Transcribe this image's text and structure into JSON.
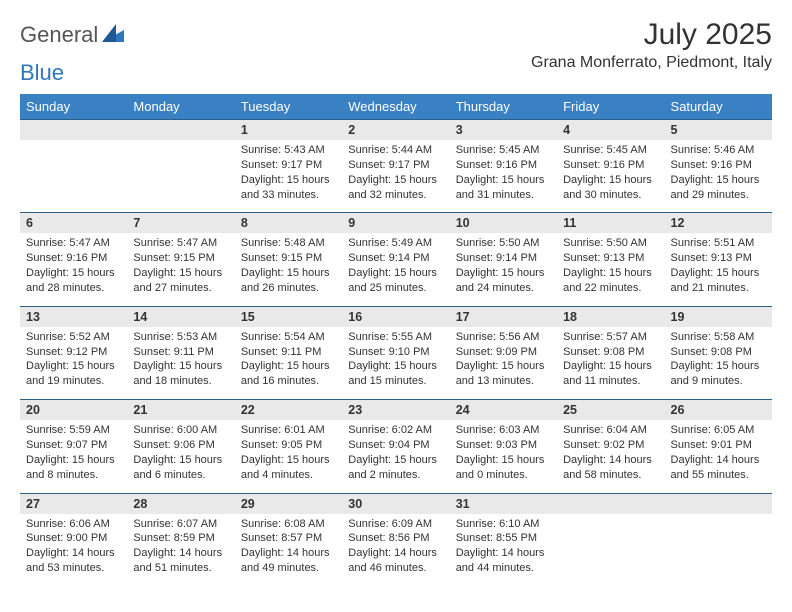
{
  "brand": {
    "part1": "General",
    "part2": "Blue"
  },
  "title": "July 2025",
  "location": "Grana Monferrato, Piedmont, Italy",
  "colors": {
    "header_bg": "#3a81c4",
    "daynum_bg": "#e9e9e9",
    "rule": "#2a5f8a",
    "text": "#333333",
    "brand_blue": "#2f77bc"
  },
  "days_of_week": [
    "Sunday",
    "Monday",
    "Tuesday",
    "Wednesday",
    "Thursday",
    "Friday",
    "Saturday"
  ],
  "weeks": [
    [
      null,
      null,
      {
        "n": "1",
        "sunrise": "Sunrise: 5:43 AM",
        "sunset": "Sunset: 9:17 PM",
        "daylight": "Daylight: 15 hours and 33 minutes."
      },
      {
        "n": "2",
        "sunrise": "Sunrise: 5:44 AM",
        "sunset": "Sunset: 9:17 PM",
        "daylight": "Daylight: 15 hours and 32 minutes."
      },
      {
        "n": "3",
        "sunrise": "Sunrise: 5:45 AM",
        "sunset": "Sunset: 9:16 PM",
        "daylight": "Daylight: 15 hours and 31 minutes."
      },
      {
        "n": "4",
        "sunrise": "Sunrise: 5:45 AM",
        "sunset": "Sunset: 9:16 PM",
        "daylight": "Daylight: 15 hours and 30 minutes."
      },
      {
        "n": "5",
        "sunrise": "Sunrise: 5:46 AM",
        "sunset": "Sunset: 9:16 PM",
        "daylight": "Daylight: 15 hours and 29 minutes."
      }
    ],
    [
      {
        "n": "6",
        "sunrise": "Sunrise: 5:47 AM",
        "sunset": "Sunset: 9:16 PM",
        "daylight": "Daylight: 15 hours and 28 minutes."
      },
      {
        "n": "7",
        "sunrise": "Sunrise: 5:47 AM",
        "sunset": "Sunset: 9:15 PM",
        "daylight": "Daylight: 15 hours and 27 minutes."
      },
      {
        "n": "8",
        "sunrise": "Sunrise: 5:48 AM",
        "sunset": "Sunset: 9:15 PM",
        "daylight": "Daylight: 15 hours and 26 minutes."
      },
      {
        "n": "9",
        "sunrise": "Sunrise: 5:49 AM",
        "sunset": "Sunset: 9:14 PM",
        "daylight": "Daylight: 15 hours and 25 minutes."
      },
      {
        "n": "10",
        "sunrise": "Sunrise: 5:50 AM",
        "sunset": "Sunset: 9:14 PM",
        "daylight": "Daylight: 15 hours and 24 minutes."
      },
      {
        "n": "11",
        "sunrise": "Sunrise: 5:50 AM",
        "sunset": "Sunset: 9:13 PM",
        "daylight": "Daylight: 15 hours and 22 minutes."
      },
      {
        "n": "12",
        "sunrise": "Sunrise: 5:51 AM",
        "sunset": "Sunset: 9:13 PM",
        "daylight": "Daylight: 15 hours and 21 minutes."
      }
    ],
    [
      {
        "n": "13",
        "sunrise": "Sunrise: 5:52 AM",
        "sunset": "Sunset: 9:12 PM",
        "daylight": "Daylight: 15 hours and 19 minutes."
      },
      {
        "n": "14",
        "sunrise": "Sunrise: 5:53 AM",
        "sunset": "Sunset: 9:11 PM",
        "daylight": "Daylight: 15 hours and 18 minutes."
      },
      {
        "n": "15",
        "sunrise": "Sunrise: 5:54 AM",
        "sunset": "Sunset: 9:11 PM",
        "daylight": "Daylight: 15 hours and 16 minutes."
      },
      {
        "n": "16",
        "sunrise": "Sunrise: 5:55 AM",
        "sunset": "Sunset: 9:10 PM",
        "daylight": "Daylight: 15 hours and 15 minutes."
      },
      {
        "n": "17",
        "sunrise": "Sunrise: 5:56 AM",
        "sunset": "Sunset: 9:09 PM",
        "daylight": "Daylight: 15 hours and 13 minutes."
      },
      {
        "n": "18",
        "sunrise": "Sunrise: 5:57 AM",
        "sunset": "Sunset: 9:08 PM",
        "daylight": "Daylight: 15 hours and 11 minutes."
      },
      {
        "n": "19",
        "sunrise": "Sunrise: 5:58 AM",
        "sunset": "Sunset: 9:08 PM",
        "daylight": "Daylight: 15 hours and 9 minutes."
      }
    ],
    [
      {
        "n": "20",
        "sunrise": "Sunrise: 5:59 AM",
        "sunset": "Sunset: 9:07 PM",
        "daylight": "Daylight: 15 hours and 8 minutes."
      },
      {
        "n": "21",
        "sunrise": "Sunrise: 6:00 AM",
        "sunset": "Sunset: 9:06 PM",
        "daylight": "Daylight: 15 hours and 6 minutes."
      },
      {
        "n": "22",
        "sunrise": "Sunrise: 6:01 AM",
        "sunset": "Sunset: 9:05 PM",
        "daylight": "Daylight: 15 hours and 4 minutes."
      },
      {
        "n": "23",
        "sunrise": "Sunrise: 6:02 AM",
        "sunset": "Sunset: 9:04 PM",
        "daylight": "Daylight: 15 hours and 2 minutes."
      },
      {
        "n": "24",
        "sunrise": "Sunrise: 6:03 AM",
        "sunset": "Sunset: 9:03 PM",
        "daylight": "Daylight: 15 hours and 0 minutes."
      },
      {
        "n": "25",
        "sunrise": "Sunrise: 6:04 AM",
        "sunset": "Sunset: 9:02 PM",
        "daylight": "Daylight: 14 hours and 58 minutes."
      },
      {
        "n": "26",
        "sunrise": "Sunrise: 6:05 AM",
        "sunset": "Sunset: 9:01 PM",
        "daylight": "Daylight: 14 hours and 55 minutes."
      }
    ],
    [
      {
        "n": "27",
        "sunrise": "Sunrise: 6:06 AM",
        "sunset": "Sunset: 9:00 PM",
        "daylight": "Daylight: 14 hours and 53 minutes."
      },
      {
        "n": "28",
        "sunrise": "Sunrise: 6:07 AM",
        "sunset": "Sunset: 8:59 PM",
        "daylight": "Daylight: 14 hours and 51 minutes."
      },
      {
        "n": "29",
        "sunrise": "Sunrise: 6:08 AM",
        "sunset": "Sunset: 8:57 PM",
        "daylight": "Daylight: 14 hours and 49 minutes."
      },
      {
        "n": "30",
        "sunrise": "Sunrise: 6:09 AM",
        "sunset": "Sunset: 8:56 PM",
        "daylight": "Daylight: 14 hours and 46 minutes."
      },
      {
        "n": "31",
        "sunrise": "Sunrise: 6:10 AM",
        "sunset": "Sunset: 8:55 PM",
        "daylight": "Daylight: 14 hours and 44 minutes."
      },
      null,
      null
    ]
  ]
}
